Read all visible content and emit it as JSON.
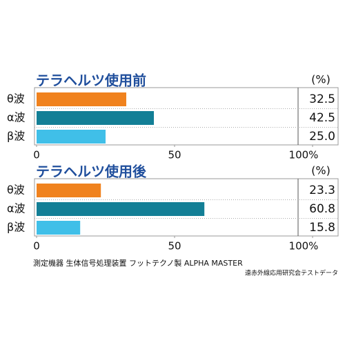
{
  "chart_data": [
    {
      "type": "bar",
      "orientation": "horizontal",
      "title": "テラヘルツ使用前",
      "unit": "(%)",
      "categories": [
        "θ波",
        "α波",
        "β波"
      ],
      "values": [
        32.5,
        42.5,
        25.0
      ],
      "value_labels": [
        "32.5",
        "42.5",
        "25.0"
      ],
      "colors": [
        "#f0821e",
        "#137f96",
        "#40bfe8"
      ],
      "xlim": [
        0,
        100
      ],
      "xticks": [
        0,
        50,
        {
          "value": 100,
          "label": "100%"
        }
      ]
    },
    {
      "type": "bar",
      "orientation": "horizontal",
      "title": "テラヘルツ使用後",
      "unit": "(%)",
      "categories": [
        "θ波",
        "α波",
        "β波"
      ],
      "values": [
        23.3,
        60.8,
        15.8
      ],
      "value_labels": [
        "23.3",
        "60.8",
        "15.8"
      ],
      "colors": [
        "#f0821e",
        "#137f96",
        "#40bfe8"
      ],
      "xlim": [
        0,
        100
      ],
      "xticks": [
        0,
        50,
        {
          "value": 100,
          "label": "100%"
        }
      ]
    }
  ],
  "footer": {
    "note": "測定機器 生体信号処理装置 フットテクノ製 ALPHA MASTER",
    "source": "遠赤外線応用研究会テストデータ"
  }
}
